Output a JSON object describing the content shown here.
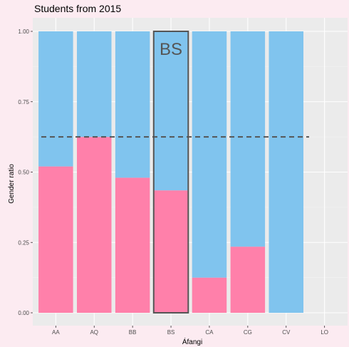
{
  "chart_data": {
    "type": "bar",
    "stacked": true,
    "title": "Students from 2015",
    "xlabel": "Áfangi",
    "ylabel": "Gender ratio",
    "ylim": [
      0,
      1
    ],
    "yticks": [
      "0.00",
      "0.25",
      "0.50",
      "0.75",
      "1.00"
    ],
    "categories": [
      "AA",
      "AQ",
      "BB",
      "BS",
      "CA",
      "CG",
      "CV",
      "LO"
    ],
    "series": [
      {
        "color": "#ff80aa",
        "values": [
          0.52,
          0.625,
          0.48,
          0.435,
          0.125,
          0.235,
          0,
          0
        ]
      },
      {
        "color": "#80c4ee",
        "values": [
          0.48,
          0.375,
          0.52,
          0.565,
          0.875,
          0.765,
          1,
          0
        ]
      }
    ],
    "reference_line": {
      "y": 0.625,
      "style": "dashed",
      "color": "#555555"
    },
    "highlight": {
      "category": "BS",
      "label": "BS",
      "outline_color": "#555555"
    },
    "panel_background": "#ebebeb",
    "grid": true
  }
}
